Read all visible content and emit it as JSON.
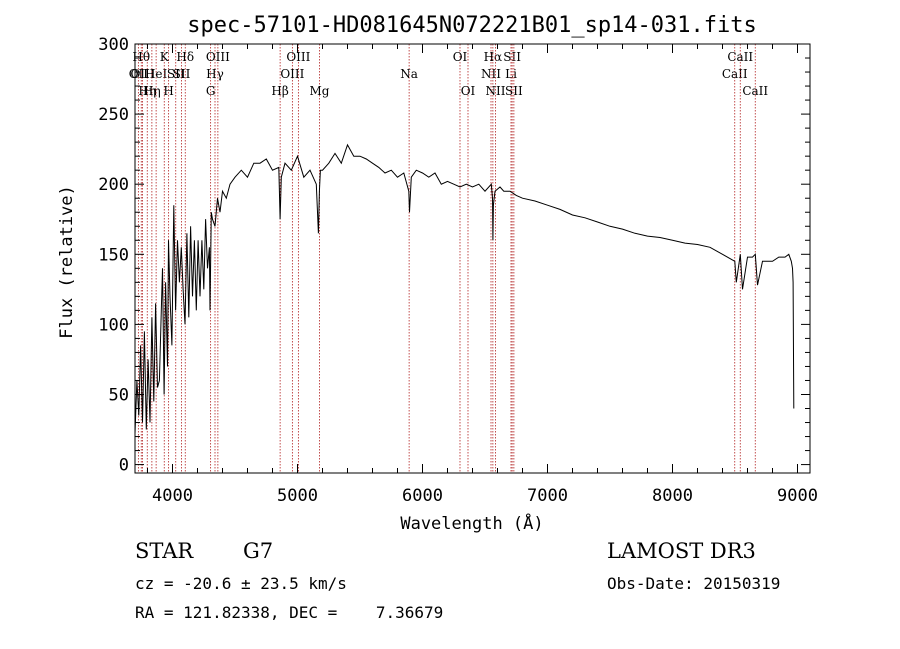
{
  "chart_data": {
    "type": "line",
    "title": "spec-57101-HD081645N072221B01_sp14-031.fits",
    "xlabel": "Wavelength (Å)",
    "ylabel": "Flux (relative)",
    "xlim": [
      3700,
      9100
    ],
    "ylim": [
      -6,
      300
    ],
    "xticks": [
      4000,
      5000,
      6000,
      7000,
      8000,
      9000
    ],
    "yticks": [
      0,
      50,
      100,
      150,
      200,
      250,
      300
    ],
    "grid": false,
    "series": [
      {
        "name": "spectrum",
        "x": [
          3700,
          3715,
          3730,
          3745,
          3760,
          3775,
          3790,
          3805,
          3820,
          3835,
          3850,
          3865,
          3880,
          3895,
          3910,
          3920,
          3933,
          3945,
          3960,
          3968,
          3980,
          3995,
          4010,
          4025,
          4040,
          4055,
          4070,
          4085,
          4100,
          4115,
          4130,
          4145,
          4160,
          4175,
          4190,
          4205,
          4220,
          4235,
          4250,
          4265,
          4280,
          4295,
          4300,
          4310,
          4320,
          4340,
          4360,
          4380,
          4400,
          4430,
          4460,
          4500,
          4550,
          4600,
          4650,
          4700,
          4750,
          4800,
          4850,
          4861,
          4870,
          4900,
          4950,
          5000,
          5050,
          5100,
          5150,
          5167,
          5175,
          5183,
          5200,
          5250,
          5300,
          5350,
          5400,
          5450,
          5500,
          5550,
          5600,
          5650,
          5700,
          5750,
          5800,
          5850,
          5890,
          5896,
          5910,
          5950,
          6000,
          6050,
          6100,
          6150,
          6200,
          6250,
          6300,
          6350,
          6400,
          6450,
          6500,
          6550,
          6560,
          6563,
          6567,
          6580,
          6620,
          6650,
          6700,
          6750,
          6800,
          6900,
          7000,
          7100,
          7200,
          7300,
          7400,
          7500,
          7600,
          7700,
          7800,
          7900,
          8000,
          8100,
          8200,
          8300,
          8400,
          8498,
          8510,
          8542,
          8560,
          8600,
          8640,
          8662,
          8680,
          8720,
          8760,
          8800,
          8850,
          8900,
          8930,
          8950,
          8960,
          8965,
          8970
        ],
        "values": [
          22,
          60,
          35,
          85,
          30,
          95,
          25,
          75,
          30,
          105,
          45,
          115,
          55,
          60,
          110,
          140,
          50,
          130,
          70,
          160,
          120,
          85,
          185,
          110,
          160,
          130,
          155,
          125,
          100,
          165,
          105,
          170,
          120,
          160,
          110,
          160,
          120,
          160,
          125,
          175,
          140,
          155,
          110,
          180,
          175,
          170,
          190,
          180,
          195,
          190,
          200,
          205,
          210,
          205,
          215,
          215,
          218,
          210,
          212,
          175,
          205,
          215,
          210,
          220,
          205,
          210,
          200,
          165,
          195,
          210,
          210,
          215,
          222,
          215,
          228,
          220,
          220,
          218,
          215,
          212,
          208,
          210,
          205,
          208,
          195,
          180,
          205,
          210,
          208,
          205,
          208,
          200,
          202,
          200,
          198,
          200,
          198,
          200,
          195,
          200,
          190,
          160,
          185,
          195,
          198,
          195,
          195,
          192,
          190,
          188,
          185,
          182,
          178,
          176,
          173,
          170,
          168,
          165,
          163,
          162,
          160,
          158,
          157,
          155,
          150,
          145,
          130,
          150,
          125,
          148,
          148,
          150,
          128,
          145,
          145,
          145,
          148,
          148,
          150,
          145,
          140,
          130,
          40
        ]
      }
    ],
    "lines": [
      {
        "x": 3727,
        "label": "OII",
        "row": 2
      },
      {
        "x": 3750,
        "label": "Hθ",
        "row": 1
      },
      {
        "x": 3760,
        "label": "OIII",
        "row": 2
      },
      {
        "x": 3798,
        "label": "Hη",
        "row": 3
      },
      {
        "x": 3835,
        "label": "Hη",
        "row": 3
      },
      {
        "x": 3869,
        "label": "HeI",
        "row": 2
      },
      {
        "x": 3934,
        "label": "K",
        "row": 1
      },
      {
        "x": 3969,
        "label": "H",
        "row": 3
      },
      {
        "x": 4026,
        "label": "SII",
        "row": 2
      },
      {
        "x": 4072,
        "label": "SII",
        "row": 2
      },
      {
        "x": 4102,
        "label": "Hδ",
        "row": 1
      },
      {
        "x": 4305,
        "label": "G",
        "row": 3
      },
      {
        "x": 4340,
        "label": "Hγ",
        "row": 2
      },
      {
        "x": 4363,
        "label": "OIII",
        "row": 1
      },
      {
        "x": 4861,
        "label": "Hβ",
        "row": 3
      },
      {
        "x": 4959,
        "label": "OIII",
        "row": 2
      },
      {
        "x": 5007,
        "label": "OIII",
        "row": 1
      },
      {
        "x": 5176,
        "label": "Mg",
        "row": 3
      },
      {
        "x": 5893,
        "label": "Na",
        "row": 2
      },
      {
        "x": 6300,
        "label": "OI",
        "row": 1
      },
      {
        "x": 6364,
        "label": "OI",
        "row": 3
      },
      {
        "x": 6548,
        "label": "NII",
        "row": 2
      },
      {
        "x": 6563,
        "label": "Hα",
        "row": 1
      },
      {
        "x": 6584,
        "label": "NII",
        "row": 3
      },
      {
        "x": 6708,
        "label": "Li",
        "row": 2
      },
      {
        "x": 6717,
        "label": "SII",
        "row": 1
      },
      {
        "x": 6731,
        "label": "SII",
        "row": 3
      },
      {
        "x": 8498,
        "label": "CaII",
        "row": 2
      },
      {
        "x": 8542,
        "label": "CaII",
        "row": 1
      },
      {
        "x": 8662,
        "label": "CaII",
        "row": 3
      }
    ]
  },
  "info": {
    "class_label": "STAR",
    "subclass": "G7",
    "survey": "LAMOST DR3",
    "cz": "cz = -20.6 ± 23.5 km/s",
    "obs_date": "Obs-Date: 20150319",
    "radec": "RA = 121.82338, DEC =    7.36679"
  },
  "colors": {
    "spectrum": "#000000",
    "line_marker": "#b22222",
    "axes": "#000000"
  }
}
